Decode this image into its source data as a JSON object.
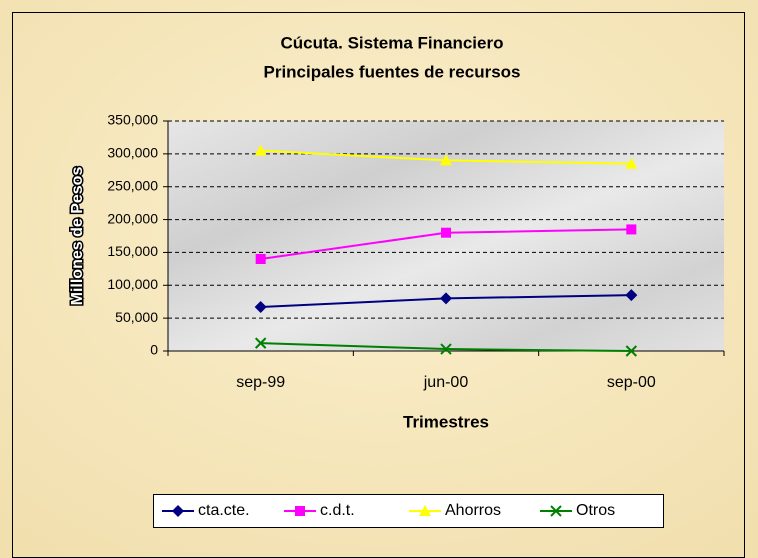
{
  "chart_data": {
    "type": "line",
    "title": "Cúcuta. Sistema Financiero",
    "subtitle": "Principales fuentes de recursos",
    "x_label": "Trimestres",
    "y_label": "Millones de Pesos",
    "categories": [
      "sep-99",
      "jun-00",
      "sep-00"
    ],
    "series": [
      {
        "name": "cta.cte.",
        "color": "#000080",
        "marker": "diamond",
        "values": [
          67000,
          80000,
          85000
        ]
      },
      {
        "name": "c.d.t.",
        "color": "#ff00ff",
        "marker": "square",
        "values": [
          140000,
          180000,
          185000
        ]
      },
      {
        "name": "Ahorros",
        "color": "#ffff00",
        "marker": "triangle",
        "values": [
          305000,
          290000,
          285000
        ]
      },
      {
        "name": "Otros",
        "color": "#008000",
        "marker": "x",
        "values": [
          12000,
          3000,
          0
        ]
      }
    ],
    "ylim": [
      0,
      350000
    ],
    "yticks": [
      0,
      {
        "value": 50000,
        "label": "50,000"
      },
      {
        "value": 100000,
        "label": "100,000"
      },
      {
        "value": 150000,
        "label": "150,000"
      },
      {
        "value": 200000,
        "label": "200,000"
      },
      {
        "value": 250000,
        "label": "250,000"
      },
      {
        "value": 300000,
        "label": "300,000"
      },
      {
        "value": 350000,
        "label": "350,000"
      }
    ],
    "grid": true,
    "legend": "bottom"
  }
}
